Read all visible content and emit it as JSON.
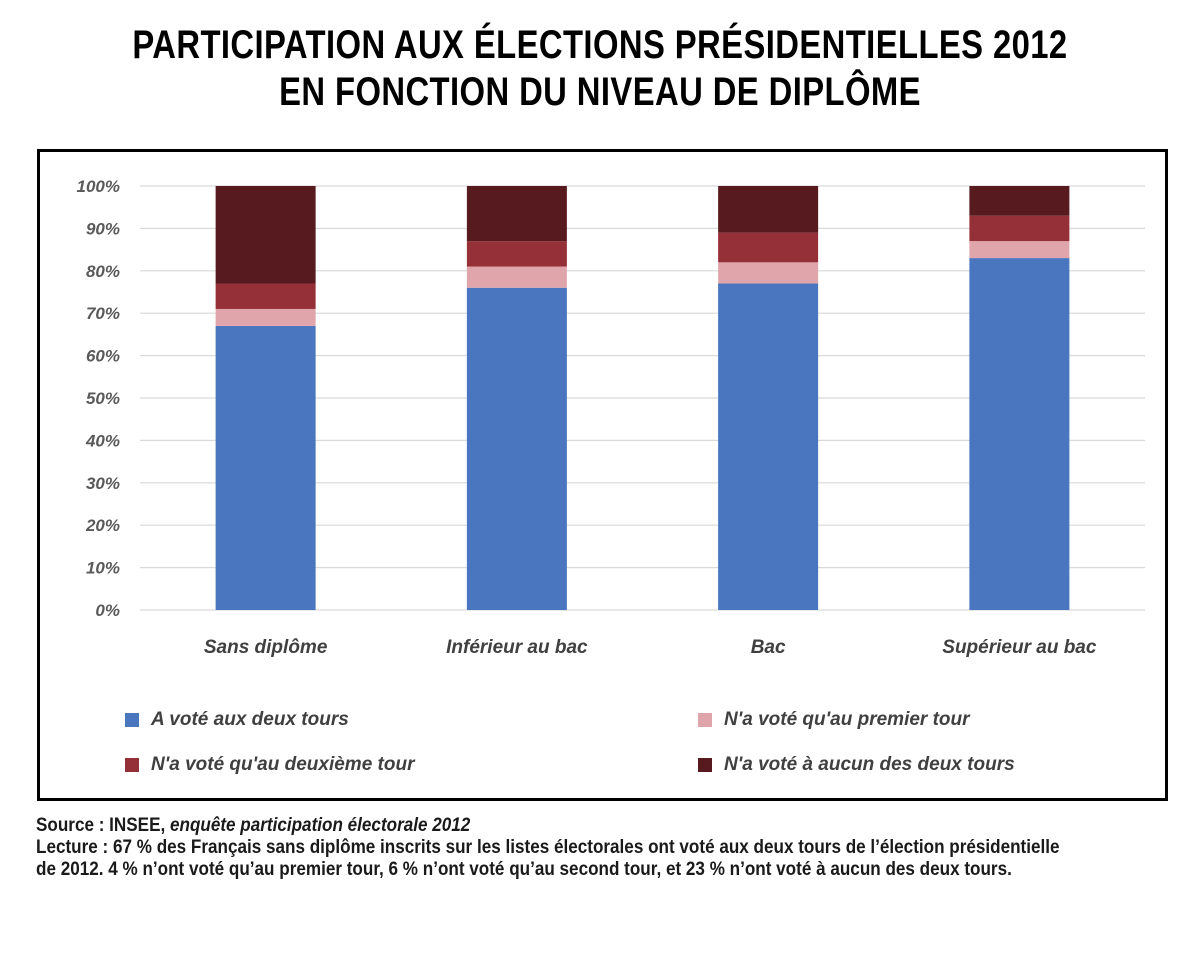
{
  "title": {
    "line1": "PARTICIPATION AUX ÉLECTIONS PRÉSIDENTIELLES 2012",
    "line2": "EN FONCTION DU NIVEAU DE DIPLÔME"
  },
  "chart_data": {
    "type": "bar",
    "stacked": true,
    "categories": [
      "Sans diplôme",
      "Inférieur au bac",
      "Bac",
      "Supérieur au bac"
    ],
    "series": [
      {
        "name": "A voté aux deux tours",
        "color": "#4a76bf",
        "values": [
          67,
          76,
          77,
          83
        ]
      },
      {
        "name": "N'a voté qu'au premier tour",
        "color": "#dfa5ab",
        "values": [
          4,
          5,
          5,
          4
        ]
      },
      {
        "name": "N'a voté qu'au deuxième tour",
        "color": "#963038",
        "values": [
          6,
          6,
          7,
          6
        ]
      },
      {
        "name": "N'a voté à aucun des deux tours",
        "color": "#571a1e",
        "values": [
          23,
          13,
          11,
          7
        ]
      }
    ],
    "ylim": [
      0,
      100
    ],
    "yticks": [
      "0%",
      "10%",
      "20%",
      "30%",
      "40%",
      "50%",
      "60%",
      "70%",
      "80%",
      "90%",
      "100%"
    ],
    "grid": true,
    "legend": "bottom"
  },
  "footer": {
    "source_prefix": "Source : INSEE, ",
    "source_italic": "enquête participation électorale 2012",
    "lecture": "Lecture : 67 % des Français sans diplôme inscrits sur les listes électorales ont voté aux deux tours de l’élection présidentielle de 2012. 4 % n’ont voté qu’au premier tour, 6 % n’ont voté qu’au second tour, et 23 % n’ont voté à aucun des deux tours."
  }
}
